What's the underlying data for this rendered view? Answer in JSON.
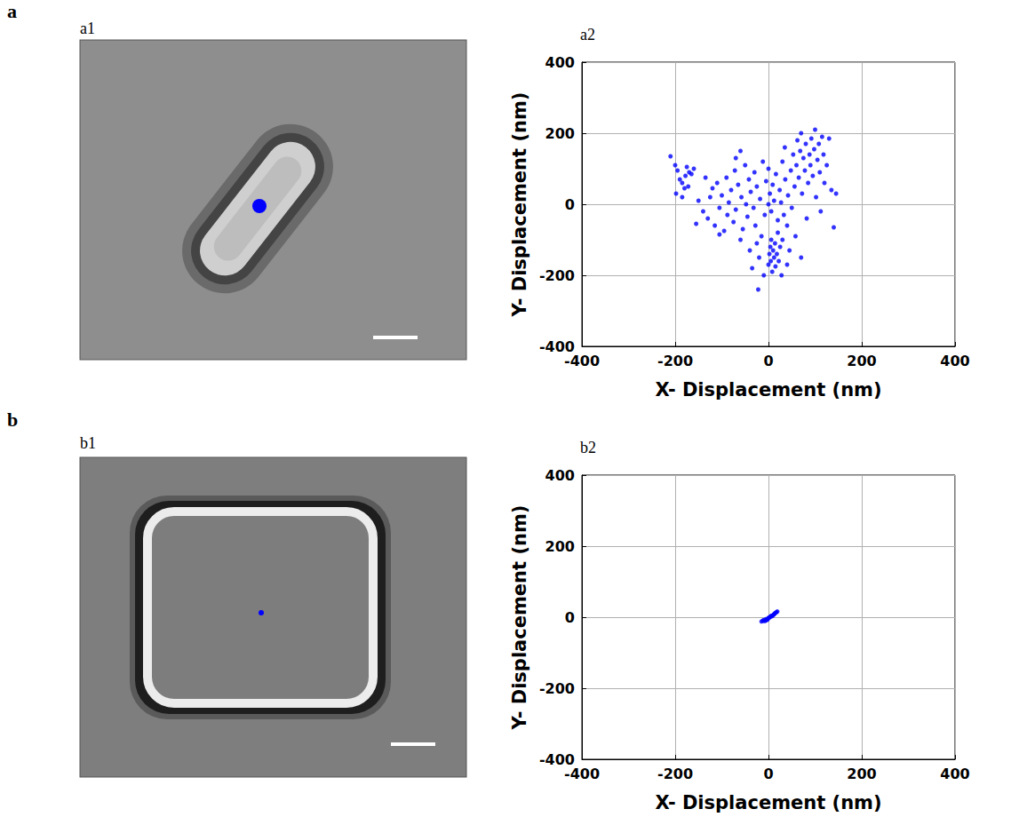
{
  "images": [
    {
      "group": "a",
      "title": "a1"
    },
    {
      "group": "b",
      "title": "b1"
    }
  ],
  "chart_data": [
    {
      "type": "scatter",
      "title": "a2",
      "xlabel": "X- Displacement (nm)",
      "ylabel": "Y- Displacement (nm)",
      "x": [
        -210,
        -200,
        -195,
        -190,
        -185,
        -180,
        -175,
        -170,
        -165,
        -160,
        -198,
        -185,
        -172,
        -178,
        -150,
        -140,
        -130,
        -125,
        -120,
        -115,
        -110,
        -105,
        -100,
        -95,
        -90,
        -88,
        -85,
        -80,
        -75,
        -72,
        -70,
        -65,
        -60,
        -58,
        -55,
        -50,
        -48,
        -45,
        -42,
        -40,
        -38,
        -35,
        -32,
        -30,
        -28,
        -25,
        -22,
        -20,
        -18,
        -15,
        -12,
        -10,
        -8,
        -5,
        0,
        2,
        4,
        5,
        6,
        8,
        10,
        12,
        14,
        15,
        18,
        20,
        22,
        25,
        28,
        30,
        0,
        3,
        6,
        9,
        12,
        16,
        20,
        24,
        27,
        30,
        33,
        36,
        40,
        42,
        45,
        48,
        50,
        53,
        56,
        58,
        60,
        62,
        65,
        68,
        70,
        72,
        75,
        78,
        80,
        82,
        85,
        88,
        90,
        92,
        95,
        98,
        100,
        102,
        105,
        108,
        110,
        112,
        115,
        118,
        120,
        125,
        130,
        135,
        140,
        145,
        -105,
        -135,
        -155,
        -60,
        0,
        35,
        -25,
        70,
        40,
        -70
      ],
      "values": [
        135,
        110,
        95,
        70,
        60,
        45,
        105,
        90,
        85,
        100,
        30,
        20,
        50,
        80,
        10,
        -20,
        -40,
        20,
        45,
        -60,
        60,
        -10,
        25,
        -75,
        75,
        -30,
        5,
        40,
        -50,
        95,
        -15,
        55,
        -100,
        20,
        -70,
        110,
        0,
        -35,
        70,
        -130,
        35,
        -180,
        -10,
        90,
        -60,
        50,
        -240,
        -150,
        15,
        -90,
        120,
        -200,
        -30,
        65,
        -170,
        -140,
        -120,
        -160,
        -100,
        -190,
        -130,
        -150,
        -110,
        -175,
        -140,
        -80,
        -160,
        -120,
        -200,
        -100,
        0,
        30,
        -20,
        55,
        10,
        85,
        -45,
        40,
        5,
        120,
        -30,
        70,
        -60,
        25,
        -130,
        95,
        -10,
        140,
        50,
        -90,
        110,
        180,
        75,
        150,
        200,
        30,
        130,
        95,
        170,
        -40,
        60,
        140,
        110,
        185,
        80,
        155,
        210,
        20,
        125,
        170,
        90,
        -20,
        190,
        140,
        60,
        110,
        185,
        40,
        -65,
        30,
        -85,
        75,
        -55,
        150,
        100,
        160,
        -110,
        -150,
        -170,
        130
      ],
      "xlim": [
        -400,
        400
      ],
      "ylim": [
        -400,
        400
      ],
      "xticks": [
        -400,
        -200,
        0,
        200,
        400
      ],
      "yticks": [
        -400,
        -200,
        0,
        200,
        400
      ],
      "grid": true,
      "color": "#0000ff",
      "marker": "circle"
    },
    {
      "type": "scatter",
      "title": "b2",
      "xlabel": "X- Displacement (nm)",
      "ylabel": "Y- Displacement (nm)",
      "x": [
        -15,
        -12,
        -10,
        -8,
        -6,
        -5,
        -3,
        -2,
        0,
        1,
        3,
        5,
        6,
        8,
        10,
        12,
        13,
        15,
        17,
        19
      ],
      "values": [
        -12,
        -10,
        -8,
        -11,
        -6,
        -9,
        -5,
        -7,
        -3,
        -1,
        0,
        2,
        4,
        3,
        6,
        8,
        10,
        12,
        14,
        16
      ],
      "xlim": [
        -400,
        400
      ],
      "ylim": [
        -400,
        400
      ],
      "xticks": [
        -400,
        -200,
        0,
        200,
        400
      ],
      "yticks": [
        -400,
        -200,
        0,
        200,
        400
      ],
      "grid": true,
      "color": "#0000ff",
      "marker": "circle"
    }
  ]
}
